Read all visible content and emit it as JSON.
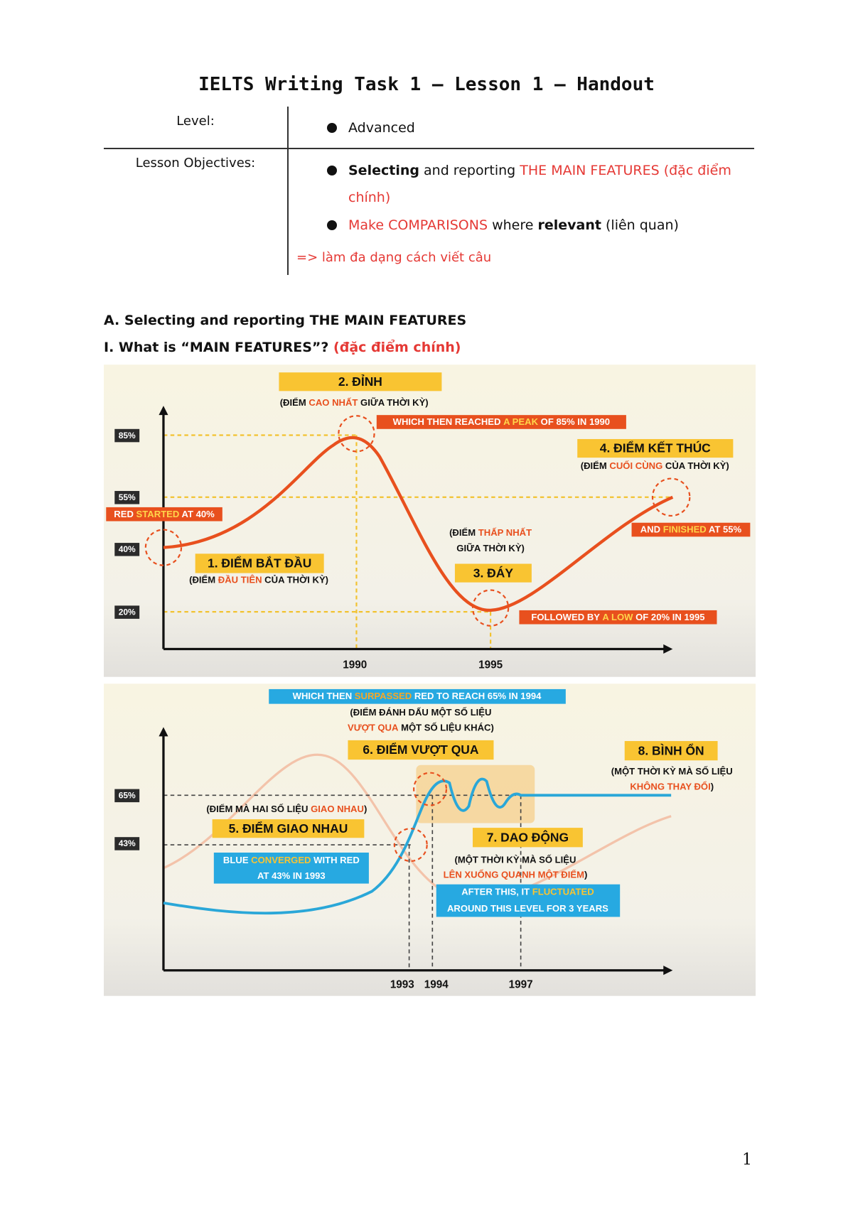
{
  "header": {
    "title": "IELTS Writing Task 1 – Lesson 1 – Handout"
  },
  "table": {
    "level_label": "Level:",
    "level": "Advanced",
    "objectives_label": "Lesson Objectives:",
    "objectives": [
      [
        "Selecting",
        " and reporting ",
        "THE MAIN FEATURES (đặc điểm chính)"
      ],
      [
        "Make COMPARISONS",
        " where ",
        "relevant",
        " (liên quan)"
      ]
    ],
    "note": "=> làm đa dạng cách viết câu"
  },
  "section_a": "A. Selecting and reporting THE MAIN FEATURES",
  "section_i": [
    "I. What is “MAIN FEATURES”? ",
    "(đặc điểm chính)"
  ],
  "figure_1": {
    "y_labels": [
      "85%",
      "55%",
      "40%",
      "20%"
    ],
    "x_labels": [
      "1990",
      "1995"
    ],
    "peak": {
      "title": "2. ĐỈNH",
      "desc": [
        "(ĐIỂM ",
        "CAO NHẤT",
        " GIỮA THỜI KỲ)"
      ],
      "note": [
        "WHICH THEN REACHED ",
        "A PEAK",
        " OF 85% IN 1990"
      ]
    },
    "end": {
      "title": "4. ĐIỂM KẾT THÚC",
      "desc": [
        "(ĐIỂM ",
        "CUỐI CÙNG",
        " CỦA THỜI KỲ)"
      ],
      "note": [
        "AND ",
        "FINISHED",
        " AT 55%"
      ]
    },
    "start": {
      "title": "1. ĐIỂM BẮT ĐẦU",
      "desc": [
        "(ĐIỂM ",
        "ĐẦU TIÊN",
        " CỦA THỜI KỲ)"
      ],
      "note": [
        "RED ",
        "STARTED",
        " AT 40%"
      ]
    },
    "low": {
      "title": "3. ĐÁY",
      "desc": [
        "(ĐIỂM ",
        "THẤP NHẤT"
      ],
      "desc_2": "GIỮA THỜI KỲ)",
      "note": [
        "FOLLOWED BY ",
        "A LOW",
        " OF 20% IN 1995"
      ]
    }
  },
  "figure_2": {
    "y_labels": [
      "65%",
      "43%"
    ],
    "x_labels": [
      "1993",
      "1994",
      "1997"
    ],
    "surpass": {
      "title": "6. ĐIỂM VƯỢT QUA",
      "desc": "(ĐIỂM ĐÁNH DẤU MỘT SỐ LIỆU",
      "desc_2": [
        "VƯỢT QUA",
        " MỘT SỐ LIỆU KHÁC)"
      ],
      "note": [
        "WHICH THEN ",
        "SURPASSED",
        " RED TO REACH 65% IN 1994"
      ]
    },
    "stable": {
      "title": "8. BÌNH ỔN",
      "desc": "(MỘT THỜI KỲ MÀ SỐ LIỆU",
      "desc_2": [
        "KHÔNG THAY ĐỔI",
        ")"
      ]
    },
    "cross": {
      "title": "5. ĐIỂM GIAO NHAU",
      "desc": [
        "(ĐIỂM MÀ HAI SỐ LIỆU ",
        "GIAO NHAU",
        ")"
      ],
      "note": [
        "BLUE ",
        "CONVERGED",
        " WITH RED"
      ],
      "note_2": "AT 43% IN 1993"
    },
    "fluct": {
      "title": "7. DAO ĐỘNG",
      "desc": "(MỘT THỜI KỲ MÀ SỐ LIỆU",
      "desc_2": [
        "LÊN XUỐNG QUANH MỘT ĐIỂM",
        ")"
      ],
      "note": [
        "AFTER THIS, IT ",
        "FLUCTUATED"
      ],
      "note_2": "AROUND THIS LEVEL FOR 3 YEARS"
    }
  },
  "page_number": "1"
}
